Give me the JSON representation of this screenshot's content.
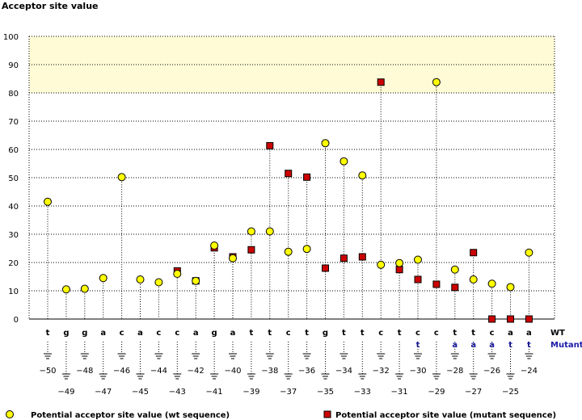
{
  "chart_data": {
    "type": "scatter",
    "title": "",
    "ylabel": "Acceptor site value",
    "ylim": [
      0,
      100
    ],
    "yticks": [
      0,
      10,
      20,
      30,
      40,
      50,
      60,
      70,
      80,
      90,
      100
    ],
    "grid": true,
    "highlight_band": {
      "from": 80,
      "to": 100,
      "color": "#fffbd6"
    },
    "row_labels": {
      "wt": "WT",
      "mutant": "Mutant"
    },
    "x": [
      -50,
      -49,
      -48,
      -47,
      -46,
      -45,
      -44,
      -43,
      -42,
      -41,
      -40,
      -39,
      -38,
      -37,
      -36,
      -35,
      -34,
      -33,
      -32,
      -31,
      -30,
      -29,
      -28,
      -27,
      -26,
      -25,
      -24
    ],
    "x_labels": [
      "-50",
      "-49",
      "-48",
      "-47",
      "-46",
      "-45",
      "-44",
      "-43",
      "-42",
      "-41",
      "-40",
      "-39",
      "-38",
      "-37",
      "-36",
      "-35",
      "-34",
      "-33",
      "-32",
      "-31",
      "-30",
      "-29",
      "-28",
      "-27",
      "-26",
      "-25",
      "-24"
    ],
    "wt_bases": [
      "t",
      "g",
      "g",
      "a",
      "c",
      "a",
      "c",
      "c",
      "a",
      "g",
      "a",
      "t",
      "t",
      "c",
      "t",
      "g",
      "t",
      "t",
      "c",
      "t",
      "c",
      "c",
      "t",
      "t",
      "c",
      "a",
      "a"
    ],
    "mutant_bases": [
      "",
      "",
      "",
      "",
      "",
      "",
      "",
      "",
      "",
      "",
      "",
      "",
      "",
      "",
      "",
      "",
      "",
      "",
      "",
      "",
      "t",
      "",
      "a",
      "a",
      "a",
      "t",
      "t"
    ],
    "series": [
      {
        "name": "Potential acceptor site value (wt sequence)",
        "marker": "circle",
        "color": "#ffff00",
        "values": [
          41.5,
          10.5,
          10.7,
          14.5,
          50.2,
          14.0,
          13.0,
          16.0,
          13.5,
          26.0,
          21.5,
          31.0,
          31.0,
          23.8,
          24.8,
          62.2,
          55.8,
          50.8,
          19.2,
          19.8,
          21.0,
          83.8,
          17.5,
          14.0,
          12.5,
          11.3,
          23.5
        ]
      },
      {
        "name": "Potential acceptor site value (mutant sequence)",
        "marker": "square",
        "color": "#cc0000",
        "values": [
          null,
          null,
          null,
          null,
          null,
          null,
          null,
          17.0,
          13.5,
          25.2,
          22.0,
          24.5,
          61.3,
          51.5,
          50.2,
          18.0,
          21.5,
          22.0,
          83.8,
          17.5,
          14.0,
          12.3,
          11.2,
          23.5,
          0,
          0,
          0
        ]
      }
    ]
  }
}
